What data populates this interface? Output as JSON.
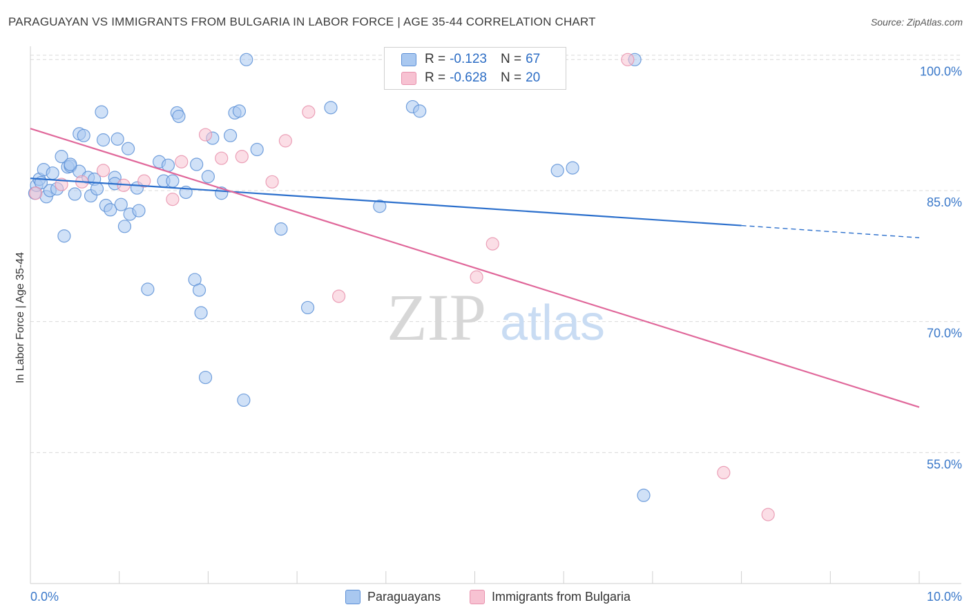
{
  "title": "PARAGUAYAN VS IMMIGRANTS FROM BULGARIA IN LABOR FORCE | AGE 35-44 CORRELATION CHART",
  "source": "Source: ZipAtlas.com",
  "colors": {
    "blue_fill": "#a9c8f0",
    "blue_stroke": "#5b8fd6",
    "blue_line": "#2b6fcc",
    "pink_fill": "#f7c2d2",
    "pink_stroke": "#e890ac",
    "pink_line": "#e0679a",
    "grid": "#d9d9d9",
    "tick_label": "#3a78c9"
  },
  "legend": {
    "rows": [
      {
        "r_label": "R =",
        "r_value": "-0.123",
        "n_label": "N =",
        "n_value": "67"
      },
      {
        "r_label": "R =",
        "r_value": "-0.628",
        "n_label": "N =",
        "n_value": "20"
      }
    ]
  },
  "watermark": {
    "zip": "ZIP",
    "atlas": "atlas"
  },
  "chart_data": {
    "type": "scatter",
    "title": "PARAGUAYAN VS IMMIGRANTS FROM BULGARIA IN LABOR FORCE | AGE 35-44 CORRELATION CHART",
    "xlabel": "",
    "ylabel": "In Labor Force | Age 35-44",
    "xlim": [
      0,
      10
    ],
    "ylim": [
      40,
      102
    ],
    "x_tick_labels": [
      "0.0%",
      "10.0%"
    ],
    "y_ticks": [
      100,
      85,
      70,
      55
    ],
    "y_tick_labels": [
      "100.0%",
      "85.0%",
      "70.0%",
      "55.0%"
    ],
    "grid": true,
    "legend_position": "bottom",
    "series": [
      {
        "name": "Paraguayans",
        "r": -0.123,
        "n": 67,
        "trend": {
          "x0": 0,
          "y0": 86.4,
          "x1": 8.0,
          "y1": 81.0,
          "dashed_to_x": 10.0,
          "dashed_to_y": 79.6
        },
        "points": [
          [
            0.05,
            84.7
          ],
          [
            0.07,
            85.6
          ],
          [
            0.1,
            86.3
          ],
          [
            0.15,
            87.4
          ],
          [
            0.18,
            84.3
          ],
          [
            0.22,
            85.0
          ],
          [
            0.25,
            87.0
          ],
          [
            0.3,
            85.2
          ],
          [
            0.35,
            88.9
          ],
          [
            0.38,
            79.8
          ],
          [
            0.42,
            87.7
          ],
          [
            0.45,
            87.8
          ],
          [
            0.5,
            84.6
          ],
          [
            0.55,
            87.2
          ],
          [
            0.55,
            91.5
          ],
          [
            0.6,
            91.3
          ],
          [
            0.65,
            86.5
          ],
          [
            0.68,
            84.4
          ],
          [
            0.72,
            86.3
          ],
          [
            0.75,
            85.2
          ],
          [
            0.8,
            94.0
          ],
          [
            0.82,
            90.8
          ],
          [
            0.85,
            83.3
          ],
          [
            0.9,
            82.8
          ],
          [
            0.95,
            86.5
          ],
          [
            0.95,
            85.8
          ],
          [
            0.98,
            90.9
          ],
          [
            1.02,
            83.4
          ],
          [
            1.06,
            80.9
          ],
          [
            1.1,
            89.8
          ],
          [
            1.12,
            82.3
          ],
          [
            1.2,
            85.3
          ],
          [
            1.22,
            82.7
          ],
          [
            1.32,
            73.7
          ],
          [
            1.45,
            88.3
          ],
          [
            1.5,
            86.1
          ],
          [
            1.55,
            87.9
          ],
          [
            1.6,
            86.1
          ],
          [
            1.65,
            93.9
          ],
          [
            1.67,
            93.5
          ],
          [
            1.75,
            84.8
          ],
          [
            1.85,
            74.8
          ],
          [
            1.87,
            88.0
          ],
          [
            1.9,
            73.6
          ],
          [
            1.92,
            71.0
          ],
          [
            1.97,
            63.6
          ],
          [
            2.0,
            86.6
          ],
          [
            2.05,
            91.0
          ],
          [
            2.15,
            84.7
          ],
          [
            2.25,
            91.3
          ],
          [
            2.3,
            93.9
          ],
          [
            2.35,
            94.1
          ],
          [
            2.4,
            61.0
          ],
          [
            2.43,
            100.0
          ],
          [
            2.55,
            89.7
          ],
          [
            2.82,
            80.6
          ],
          [
            3.12,
            71.6
          ],
          [
            3.38,
            94.5
          ],
          [
            3.93,
            83.2
          ],
          [
            4.3,
            94.6
          ],
          [
            4.38,
            94.1
          ],
          [
            5.93,
            87.3
          ],
          [
            6.1,
            87.6
          ],
          [
            6.8,
            100.0
          ],
          [
            6.9,
            50.1
          ],
          [
            0.12,
            85.9
          ],
          [
            0.45,
            88.0
          ]
        ]
      },
      {
        "name": "Immigrants from Bulgaria",
        "r": -0.628,
        "n": 20,
        "trend": {
          "x0": 0,
          "y0": 92.1,
          "x1": 10.0,
          "y1": 60.2
        },
        "points": [
          [
            0.06,
            84.7
          ],
          [
            0.35,
            85.7
          ],
          [
            0.58,
            86.0
          ],
          [
            0.82,
            87.3
          ],
          [
            1.05,
            85.6
          ],
          [
            1.28,
            86.1
          ],
          [
            1.6,
            84.0
          ],
          [
            1.7,
            88.3
          ],
          [
            1.97,
            91.4
          ],
          [
            2.15,
            88.7
          ],
          [
            2.38,
            88.9
          ],
          [
            2.72,
            86.0
          ],
          [
            2.87,
            90.7
          ],
          [
            3.13,
            94.0
          ],
          [
            3.47,
            72.9
          ],
          [
            5.02,
            75.1
          ],
          [
            5.2,
            78.9
          ],
          [
            6.72,
            100.0
          ],
          [
            7.8,
            52.7
          ],
          [
            8.3,
            47.9
          ]
        ]
      }
    ]
  }
}
